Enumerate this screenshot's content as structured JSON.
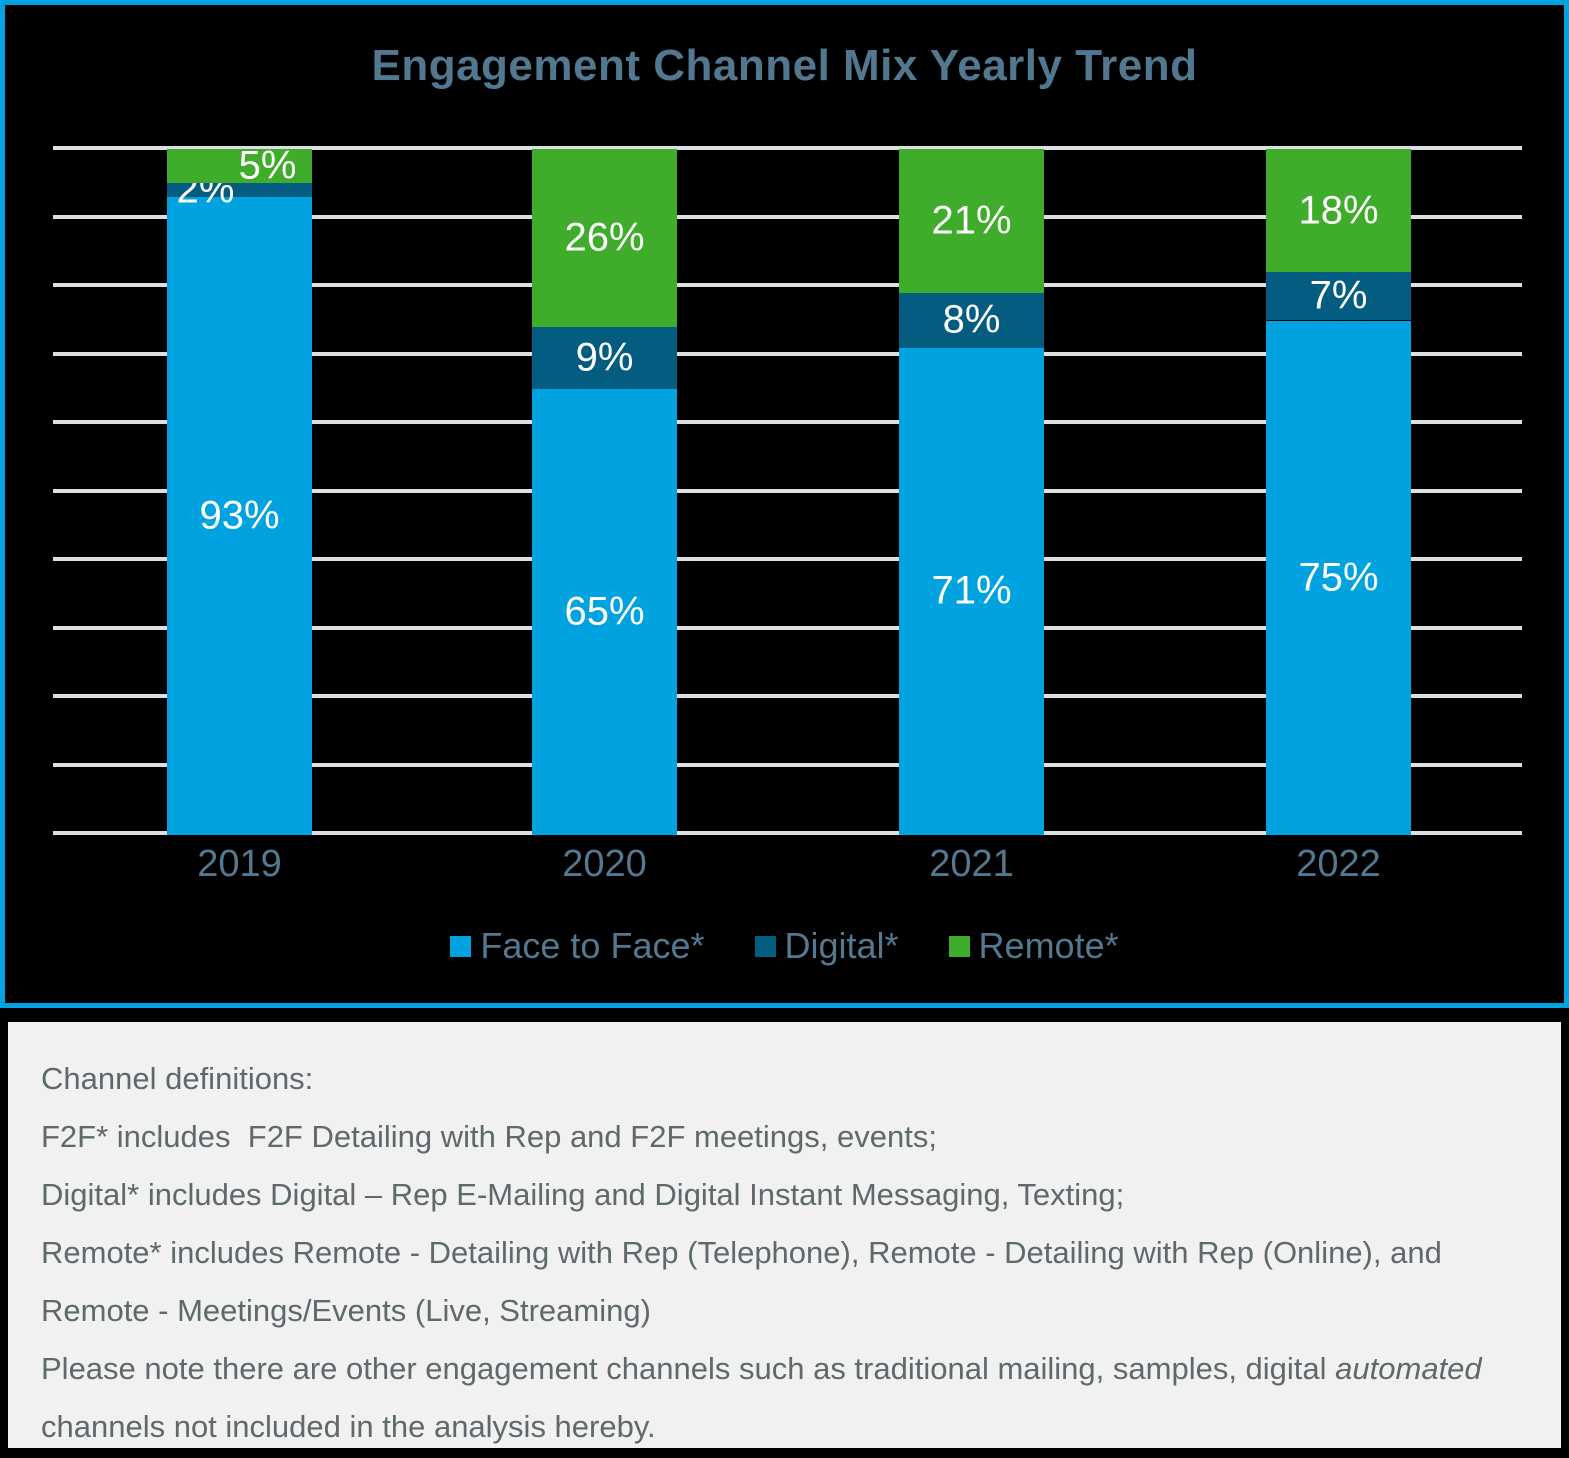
{
  "chart_data": {
    "type": "bar",
    "stacked": true,
    "title": "Engagement Channel Mix Yearly Trend",
    "categories": [
      "2019",
      "2020",
      "2021",
      "2022"
    ],
    "series": [
      {
        "name": "Face to Face*",
        "color": "#00A3E0",
        "values": [
          93,
          65,
          71,
          75
        ]
      },
      {
        "name": "Digital*",
        "color": "#045D81",
        "values": [
          2,
          9,
          8,
          7
        ]
      },
      {
        "name": "Remote*",
        "color": "#3FAD2B",
        "values": [
          5,
          26,
          21,
          18
        ]
      }
    ],
    "value_format": "percent",
    "data_labels": true,
    "xlabel": "",
    "ylabel": "",
    "ylim": [
      0,
      100
    ],
    "grid": true,
    "gridline_interval": 10,
    "y_axis_labels_visible": false,
    "legend_position": "bottom"
  },
  "colors": {
    "chart_background": "#000000",
    "chart_border_accent": "#00A3E0",
    "title_and_axis_text": "#53788F",
    "gridline": "#DCE0E4",
    "data_label_text": "#FFFFFF",
    "footnote_background": "#F1F1F1",
    "footnote_text": "#5E696C"
  },
  "footnote": {
    "heading": "Channel definitions:",
    "definitions": [
      "F2F* includes  F2F Detailing with Rep and F2F meetings, events;",
      "Digital* includes Digital – Rep E-Mailing and Digital Instant Messaging, Texting;",
      "Remote* includes Remote - Detailing with Rep (Telephone), Remote - Detailing with Rep (Online), and Remote - Meetings/Events (Live, Streaming)"
    ],
    "note_prefix": "Please note there are other engagement channels such as traditional mailing, samples, digital ",
    "note_italic": "automated",
    "note_suffix": "channels not included in the analysis hereby."
  }
}
